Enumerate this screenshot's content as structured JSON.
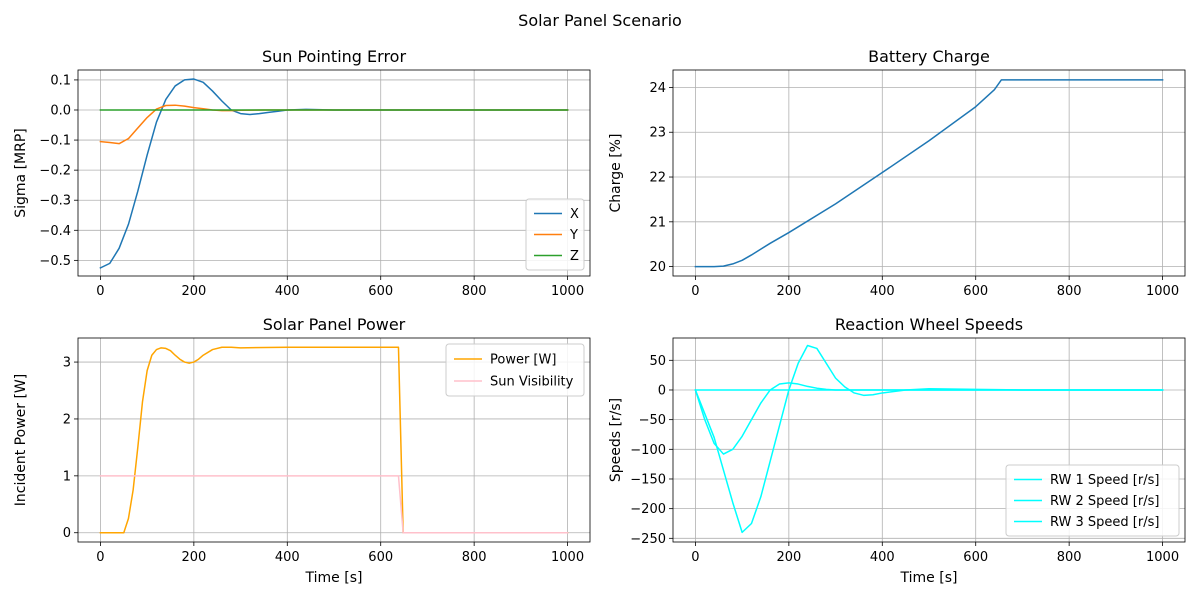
{
  "figure": {
    "title": "Solar Panel Scenario",
    "colors": {
      "blue": "#1f77b4",
      "orange": "#ff7f0e",
      "green": "#2ca02c",
      "power": "#ffa500",
      "visibility": "#ffc0cb",
      "wheel": "#00ffff",
      "grid": "#b0b0b0"
    }
  },
  "chart_data": [
    {
      "type": "line",
      "title": "Sun Pointing Error",
      "xlabel": "",
      "ylabel": "Sigma [MRP]",
      "xlim": [
        -48,
        1048
      ],
      "ylim": [
        -0.552,
        0.133
      ],
      "xticks": [
        0,
        200,
        400,
        600,
        800,
        1000
      ],
      "yticks": [
        -0.5,
        -0.4,
        -0.3,
        -0.2,
        -0.1,
        0.0,
        0.1
      ],
      "ytick_labels": [
        "−0.5",
        "−0.4",
        "−0.3",
        "−0.2",
        "−0.1",
        "0.0",
        "0.1"
      ],
      "grid": true,
      "legend": "lower-right",
      "series": [
        {
          "name": "X",
          "color": "#1f77b4",
          "x": [
            0,
            20,
            40,
            60,
            80,
            100,
            120,
            140,
            160,
            180,
            200,
            220,
            240,
            260,
            280,
            300,
            320,
            340,
            360,
            380,
            400,
            440,
            500,
            600,
            700,
            800,
            900,
            1000
          ],
          "y": [
            -0.525,
            -0.51,
            -0.46,
            -0.38,
            -0.27,
            -0.15,
            -0.04,
            0.035,
            0.08,
            0.1,
            0.103,
            0.092,
            0.063,
            0.03,
            0.0,
            -0.012,
            -0.015,
            -0.012,
            -0.008,
            -0.004,
            0.0,
            0.002,
            0.0,
            0.0,
            0.0,
            0.0,
            0.0,
            0.0
          ]
        },
        {
          "name": "Y",
          "color": "#ff7f0e",
          "x": [
            0,
            20,
            40,
            60,
            80,
            100,
            120,
            140,
            160,
            180,
            200,
            220,
            240,
            260,
            280,
            300,
            350,
            400,
            500,
            600,
            700,
            800,
            900,
            1000
          ],
          "y": [
            -0.105,
            -0.108,
            -0.112,
            -0.095,
            -0.06,
            -0.025,
            0.003,
            0.015,
            0.016,
            0.013,
            0.008,
            0.004,
            0.0,
            -0.002,
            -0.002,
            -0.001,
            0.0,
            0.0,
            0.0,
            0.0,
            0.0,
            0.0,
            0.0,
            0.0
          ]
        },
        {
          "name": "Z",
          "color": "#2ca02c",
          "x": [
            0,
            200,
            400,
            600,
            800,
            1000
          ],
          "y": [
            0.0,
            0.0,
            0.0,
            0.0,
            0.0,
            0.0
          ]
        }
      ]
    },
    {
      "type": "line",
      "title": "Battery Charge",
      "xlabel": "",
      "ylabel": "Charge [%]",
      "xlim": [
        -48,
        1048
      ],
      "ylim": [
        19.79,
        24.39
      ],
      "xticks": [
        0,
        200,
        400,
        600,
        800,
        1000
      ],
      "yticks": [
        20,
        21,
        22,
        23,
        24
      ],
      "grid": true,
      "series": [
        {
          "name": "",
          "color": "#1f77b4",
          "x": [
            0,
            20,
            40,
            60,
            80,
            100,
            120,
            140,
            160,
            180,
            200,
            300,
            400,
            500,
            600,
            640,
            655,
            700,
            800,
            900,
            1000
          ],
          "y": [
            20.0,
            20.0,
            20.0,
            20.01,
            20.06,
            20.14,
            20.26,
            20.39,
            20.52,
            20.64,
            20.76,
            21.4,
            22.1,
            22.81,
            23.57,
            23.95,
            24.17,
            24.17,
            24.17,
            24.17,
            24.17
          ]
        }
      ]
    },
    {
      "type": "line",
      "title": "Solar Panel Power",
      "xlabel": "Time [s]",
      "ylabel": "Incident Power [W]",
      "xlim": [
        -48,
        1048
      ],
      "ylim": [
        -0.163,
        3.423
      ],
      "xticks": [
        0,
        200,
        400,
        600,
        800,
        1000
      ],
      "yticks": [
        0,
        1,
        2,
        3
      ],
      "grid": true,
      "legend": "upper-right",
      "series": [
        {
          "name": "Power [W]",
          "color": "#ffa500",
          "x": [
            0,
            50,
            60,
            70,
            80,
            90,
            100,
            110,
            120,
            130,
            140,
            150,
            160,
            170,
            180,
            190,
            200,
            210,
            220,
            240,
            260,
            280,
            300,
            400,
            500,
            600,
            638,
            648,
            700,
            800,
            900,
            1000
          ],
          "y": [
            0.0,
            0.0,
            0.25,
            0.75,
            1.5,
            2.3,
            2.85,
            3.12,
            3.22,
            3.25,
            3.24,
            3.2,
            3.12,
            3.05,
            3.0,
            2.98,
            3.0,
            3.05,
            3.12,
            3.22,
            3.26,
            3.26,
            3.25,
            3.26,
            3.26,
            3.26,
            3.26,
            0.0,
            0.0,
            0.0,
            0.0,
            0.0
          ]
        },
        {
          "name": "Sun Visibility",
          "color": "#ffc0cb",
          "x": [
            0,
            200,
            400,
            600,
            638,
            648,
            700,
            800,
            900,
            1000
          ],
          "y": [
            1,
            1,
            1,
            1,
            1,
            0,
            0,
            0,
            0,
            0
          ]
        }
      ]
    },
    {
      "type": "line",
      "title": "Reaction Wheel Speeds",
      "xlabel": "Time [s]",
      "ylabel": "Speeds [r/s]",
      "xlim": [
        -48,
        1048
      ],
      "ylim": [
        -256.2,
        87.6
      ],
      "xticks": [
        0,
        200,
        400,
        600,
        800,
        1000
      ],
      "yticks": [
        -250,
        -200,
        -150,
        -100,
        -50,
        0,
        50
      ],
      "ytick_labels": [
        "−250",
        "−200",
        "−150",
        "−100",
        "−50",
        "0",
        "50"
      ],
      "grid": true,
      "legend": "lower-right",
      "series": [
        {
          "name": "RW 1 Speed [r/s]",
          "color": "#00ffff",
          "x": [
            0,
            20,
            40,
            60,
            80,
            100,
            120,
            140,
            160,
            180,
            200,
            220,
            240,
            260,
            280,
            300,
            320,
            340,
            360,
            380,
            400,
            450,
            500,
            600,
            700,
            800,
            900,
            1000
          ],
          "y": [
            0,
            -40,
            -80,
            -135,
            -190,
            -240,
            -225,
            -180,
            -120,
            -60,
            0,
            45,
            75,
            70,
            45,
            20,
            5,
            -5,
            -9,
            -8,
            -5,
            0,
            2,
            1,
            0,
            0,
            0,
            0
          ]
        },
        {
          "name": "RW 2 Speed [r/s]",
          "color": "#00ffff",
          "x": [
            0,
            20,
            40,
            60,
            80,
            100,
            120,
            140,
            160,
            180,
            200,
            220,
            240,
            260,
            280,
            300,
            350,
            400,
            450,
            500,
            600,
            700,
            800,
            900,
            1000
          ],
          "y": [
            0,
            -50,
            -90,
            -108,
            -100,
            -78,
            -50,
            -22,
            0,
            10,
            12,
            10,
            6,
            3,
            1,
            0,
            0,
            0,
            0,
            0,
            0,
            0,
            0,
            0,
            0
          ]
        },
        {
          "name": "RW 3 Speed [r/s]",
          "color": "#00ffff",
          "x": [
            0,
            200,
            400,
            600,
            800,
            1000
          ],
          "y": [
            0,
            0,
            0,
            0,
            0,
            0
          ]
        }
      ]
    }
  ]
}
